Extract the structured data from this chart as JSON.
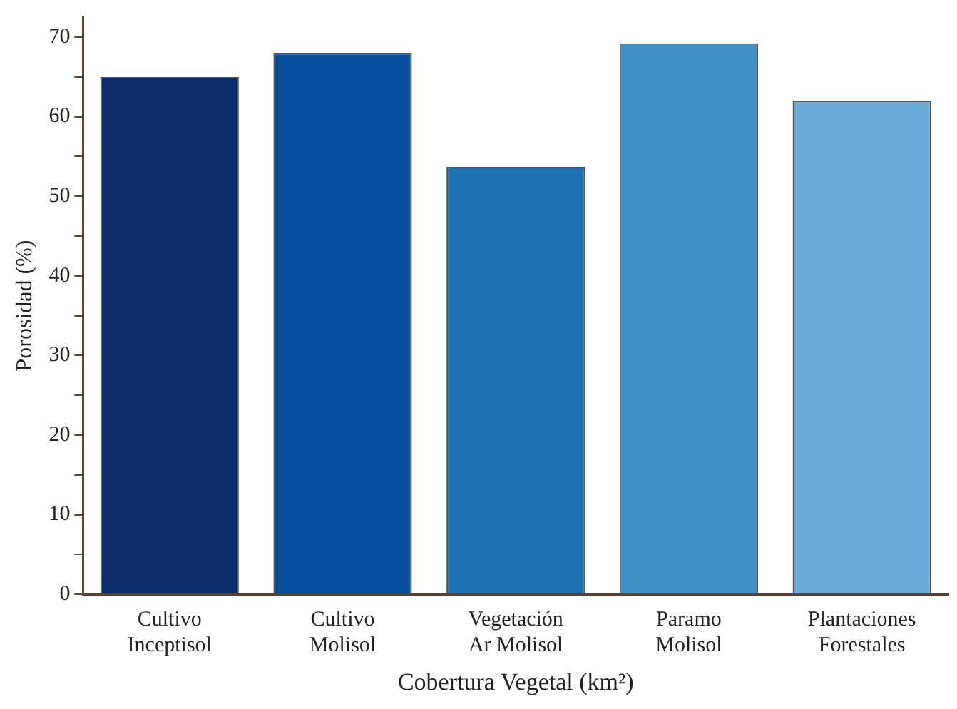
{
  "chart_data": {
    "type": "bar",
    "xlabel": "Cobertura Vegetal (km²)",
    "ylabel": "Porosidad (%)",
    "categories": [
      "Cultivo\nInceptisol",
      "Cultivo\nMolisol",
      "Vegetación\nAr Molisol",
      "Paramo\nMolisol",
      "Plantaciones\nForestales"
    ],
    "values": [
      65,
      68,
      53.7,
      69.2,
      62
    ],
    "colors": [
      "#0b2d6b",
      "#08509b",
      "#2070b4",
      "#4191c6",
      "#6aaad7"
    ],
    "ylim": [
      0,
      72.5
    ],
    "yticks": [
      0,
      {
        "value": 5,
        "label": null
      },
      10,
      {
        "value": 15,
        "label": null
      },
      20,
      {
        "value": 25,
        "label": null
      },
      30,
      {
        "value": 35,
        "label": null
      },
      40,
      {
        "value": 45,
        "label": null
      },
      50,
      {
        "value": 55,
        "label": null
      },
      60,
      {
        "value": 65,
        "label": null
      },
      70
    ],
    "grid": false,
    "legend": false
  }
}
